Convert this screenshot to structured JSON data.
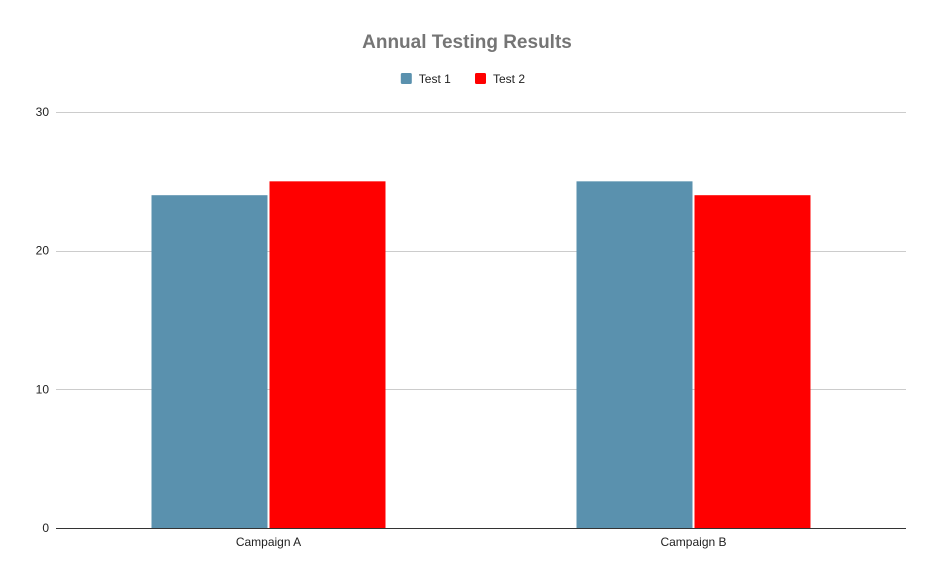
{
  "chart_data": {
    "type": "bar",
    "title": "Annual Testing Results",
    "xlabel": "",
    "ylabel": "",
    "categories": [
      "Campaign A",
      "Campaign B"
    ],
    "series": [
      {
        "name": "Test 1",
        "values": [
          24,
          25
        ],
        "color": "#5a91ae"
      },
      {
        "name": "Test 2",
        "values": [
          25,
          24
        ],
        "color": "#ff0000"
      }
    ],
    "ylim": [
      0,
      30
    ],
    "yticks": [
      0,
      10,
      20,
      30
    ],
    "grid": true,
    "legend_position": "top-center"
  }
}
